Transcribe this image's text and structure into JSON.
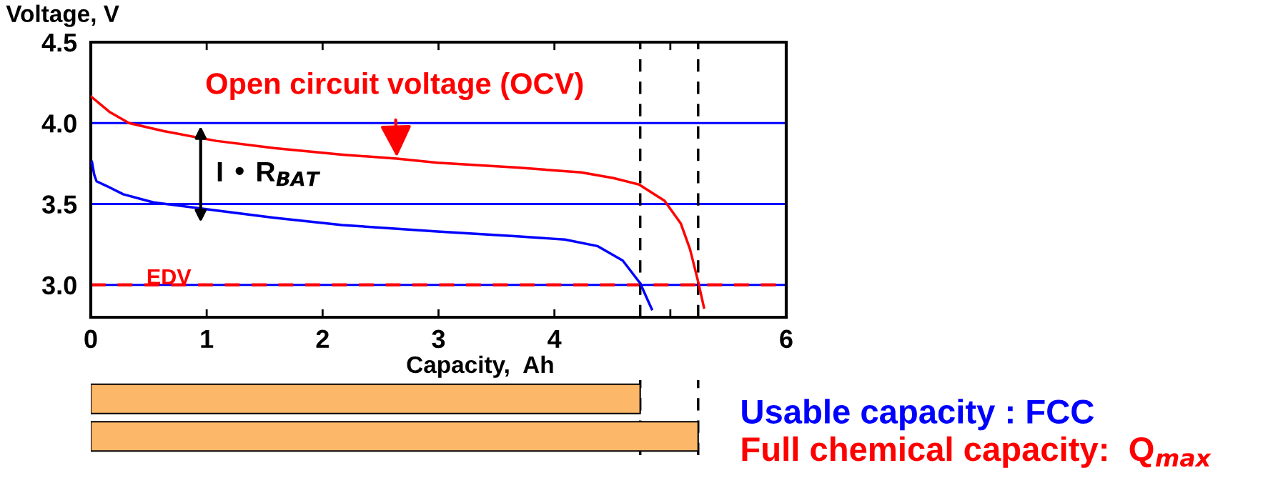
{
  "chart_data": [
    {
      "type": "line",
      "xlabel": "Capacity,  Ah",
      "ylabel": "Voltage, V",
      "xlim": [
        0,
        6
      ],
      "ylim": [
        2.8,
        4.5
      ],
      "grid": "y",
      "xticks": [
        0,
        1,
        2,
        3,
        4,
        {
          "value": 5,
          "label": null
        },
        6
      ],
      "yticks": [
        {
          "value": 3,
          "label": "3.0"
        },
        {
          "value": 3.5,
          "label": "3.5"
        },
        {
          "value": 4,
          "label": "4.0"
        },
        {
          "value": 4.5,
          "label": "4.5"
        }
      ],
      "series": [
        {
          "color": "#ff0000",
          "x": [
            0,
            0.16,
            0.33,
            0.63,
            1.08,
            1.58,
            2.17,
            2.64,
            2.99,
            3.68,
            4.23,
            4.51,
            4.73,
            4.95,
            5.09,
            5.17,
            5.24,
            5.29
          ],
          "values": [
            4.165,
            4.07,
            4.0,
            3.95,
            3.89,
            3.845,
            3.805,
            3.78,
            3.755,
            3.725,
            3.695,
            3.66,
            3.62,
            3.52,
            3.38,
            3.22,
            3.02,
            2.86
          ]
        },
        {
          "color": "#0000ff",
          "x": [
            0.01,
            0.03,
            0.05,
            0.14,
            0.28,
            0.54,
            1.08,
            1.58,
            2.17,
            2.99,
            3.68,
            4.09,
            4.37,
            4.59,
            4.74,
            4.84
          ],
          "values": [
            3.76,
            3.68,
            3.64,
            3.61,
            3.56,
            3.51,
            3.46,
            3.415,
            3.37,
            3.33,
            3.3,
            3.28,
            3.24,
            3.15,
            3.01,
            2.85
          ]
        }
      ],
      "ref_lines": [
        {
          "axis": "y",
          "value": 3,
          "color": "#ff0000",
          "line_style": "dashed",
          "label": "EDV"
        },
        {
          "axis": "x",
          "value": 4.74,
          "color": "#000000",
          "line_style": "dashed"
        },
        {
          "axis": "x",
          "value": 5.24,
          "color": "#000000",
          "line_style": "dashed"
        }
      ],
      "annotations": [
        {
          "text": "Open circuit voltage (OCV)",
          "x": 2.64,
          "y": 3.79
        },
        "I • R$_{BAT}$"
      ]
    },
    {
      "type": "bar",
      "orientation": "horizontal",
      "tick_labels": "y",
      "categories": [
        "Usable capacity : FCC",
        "Full chemical capacity:  Q$_{max}$"
      ],
      "values": [
        4.74,
        5.24
      ],
      "colors": [
        "#fcb768",
        "#fcb768"
      ],
      "xlim": [
        0,
        6
      ],
      "ref_lines": [
        {
          "axis": "x",
          "value": 4.74,
          "color": "#000000",
          "line_style": "dashed"
        },
        {
          "axis": "x",
          "value": 5.24,
          "color": "#000000",
          "line_style": "dashed"
        }
      ]
    }
  ]
}
